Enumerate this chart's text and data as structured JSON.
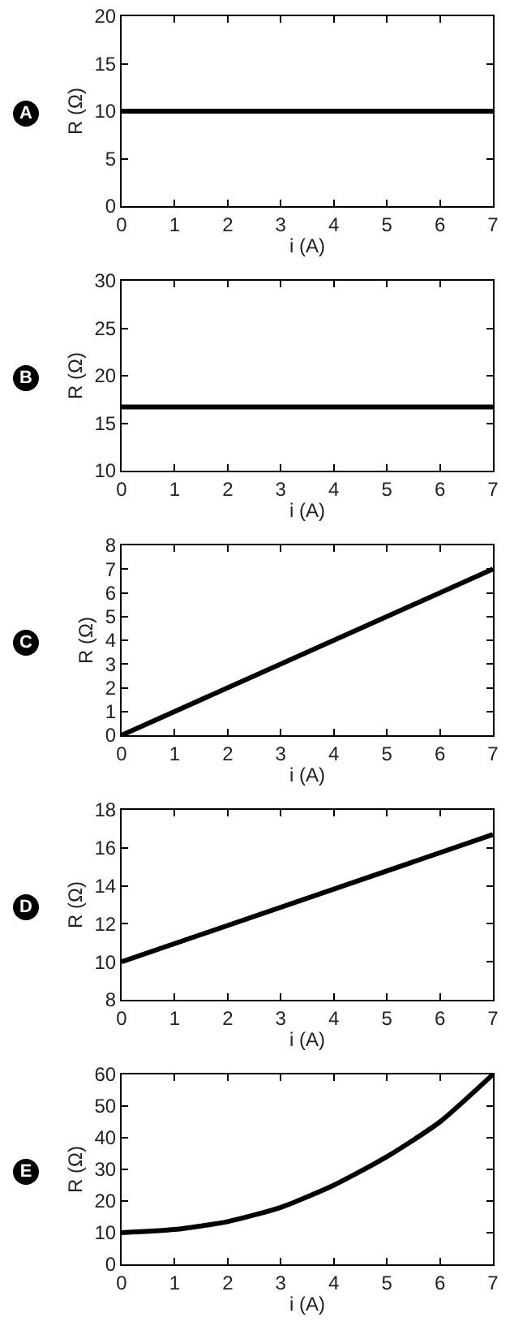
{
  "chart_data": [
    {
      "type": "line",
      "title": "A",
      "xlabel": "i (A)",
      "ylabel": "R (Ω)",
      "x": [
        0,
        7
      ],
      "series": [
        {
          "color": "#000000",
          "values": [
            10,
            10
          ]
        }
      ],
      "xlim": [
        0,
        7
      ],
      "xticks": [
        0,
        1,
        2,
        3,
        4,
        5,
        6,
        7
      ],
      "ylim": [
        0,
        20
      ],
      "yticks": [
        0,
        5,
        10,
        15,
        20
      ],
      "grid": false,
      "marker": "none",
      "line_style": "solid"
    },
    {
      "type": "line",
      "title": "B",
      "xlabel": "i (A)",
      "ylabel": "R (Ω)",
      "x": [
        0,
        7
      ],
      "series": [
        {
          "color": "#000000",
          "values": [
            16.7,
            16.7
          ]
        }
      ],
      "xlim": [
        0,
        7
      ],
      "xticks": [
        0,
        1,
        2,
        3,
        4,
        5,
        6,
        7
      ],
      "ylim": [
        10,
        30
      ],
      "yticks": [
        10,
        15,
        20,
        25,
        30
      ],
      "grid": false,
      "marker": "none",
      "line_style": "solid"
    },
    {
      "type": "line",
      "title": "C",
      "xlabel": "i (A)",
      "ylabel": "R (Ω)",
      "x": [
        0,
        7
      ],
      "series": [
        {
          "color": "#000000",
          "values": [
            0,
            7
          ]
        }
      ],
      "xlim": [
        0,
        7
      ],
      "xticks": [
        0,
        1,
        2,
        3,
        4,
        5,
        6,
        7
      ],
      "ylim": [
        0,
        8
      ],
      "yticks": [
        0,
        1,
        2,
        3,
        4,
        5,
        6,
        7,
        8
      ],
      "grid": false,
      "marker": "none",
      "line_style": "solid"
    },
    {
      "type": "line",
      "title": "D",
      "xlabel": "i (A)",
      "ylabel": "R (Ω)",
      "x": [
        0,
        7
      ],
      "series": [
        {
          "color": "#000000",
          "values": [
            10,
            16.7
          ]
        }
      ],
      "xlim": [
        0,
        7
      ],
      "xticks": [
        0,
        1,
        2,
        3,
        4,
        5,
        6,
        7
      ],
      "ylim": [
        8,
        18
      ],
      "yticks": [
        8,
        10,
        12,
        14,
        16,
        18
      ],
      "grid": false,
      "marker": "none",
      "line_style": "solid"
    },
    {
      "type": "line",
      "title": "E",
      "xlabel": "i (A)",
      "ylabel": "R (Ω)",
      "x": [
        0,
        1,
        2,
        3,
        4,
        5,
        6,
        7
      ],
      "series": [
        {
          "color": "#000000",
          "values": [
            10,
            11,
            13.5,
            18,
            25,
            34,
            45,
            60
          ]
        }
      ],
      "xlim": [
        0,
        7
      ],
      "xticks": [
        0,
        1,
        2,
        3,
        4,
        5,
        6,
        7
      ],
      "ylim": [
        0,
        60
      ],
      "yticks": [
        0,
        10,
        20,
        30,
        40,
        50,
        60
      ],
      "grid": false,
      "marker": "none",
      "line_style": "solid"
    }
  ]
}
